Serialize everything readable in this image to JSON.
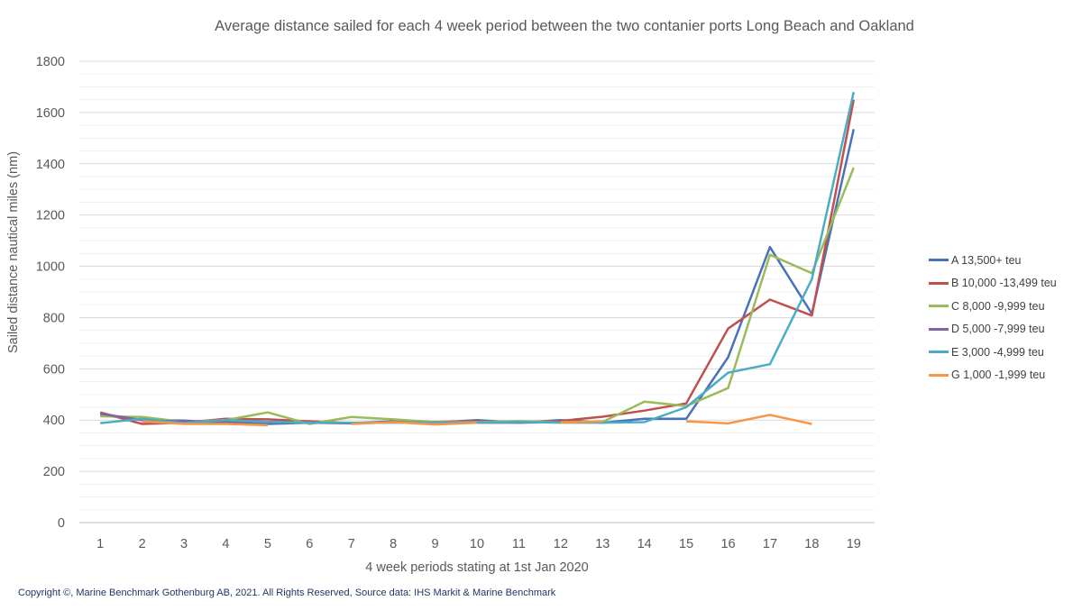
{
  "chart_data": {
    "type": "line",
    "title": "Average distance sailed for each 4 week period between the two contanier ports Long Beach and Oakland",
    "xlabel": "4 week periods stating at 1st Jan 2020",
    "ylabel": "Sailed distance nautical miles (nm)",
    "x": [
      1,
      2,
      3,
      4,
      5,
      6,
      7,
      8,
      9,
      10,
      11,
      12,
      13,
      14,
      15,
      16,
      17,
      18,
      19
    ],
    "ylim": [
      0,
      1800
    ],
    "yticks": [
      0,
      200,
      400,
      600,
      800,
      1000,
      1200,
      1400,
      1600,
      1800
    ],
    "grid": true,
    "legend_position": "right",
    "series": [
      {
        "name": "A 13,500+ teu",
        "color": "#4a72b8",
        "values": [
          420,
          400,
          398,
          388,
          385,
          390,
          388,
          395,
          390,
          400,
          390,
          400,
          390,
          405,
          405,
          645,
          1075,
          815,
          1535
        ]
      },
      {
        "name": "B 10,000 -13,499 teu",
        "color": "#c0504d",
        "values": [
          430,
          385,
          390,
          405,
          403,
          395,
          388,
          392,
          393,
          395,
          392,
          397,
          413,
          437,
          465,
          757,
          870,
          808,
          1650
        ]
      },
      {
        "name": "C 8,000 -9,999 teu",
        "color": "#9bbb59",
        "values": [
          415,
          412,
          393,
          400,
          430,
          385,
          412,
          403,
          392,
          392,
          396,
          392,
          393,
          472,
          455,
          525,
          1045,
          973,
          1385
        ]
      },
      {
        "name": "D 5,000 -7,999 teu",
        "color": "#8064a2",
        "values": [
          425,
          400,
          395,
          395,
          393,
          390,
          387,
          392,
          390,
          390,
          390,
          392,
          null,
          null,
          null,
          null,
          null,
          null,
          null
        ]
      },
      {
        "name": "E 3,000 -4,999 teu",
        "color": "#4bacc6",
        "values": [
          388,
          405,
          388,
          400,
          393,
          390,
          390,
          390,
          390,
          390,
          393,
          390,
          390,
          392,
          450,
          585,
          618,
          950,
          1680
        ]
      },
      {
        "name": "G 1,000 -1,999 teu",
        "color": "#f79646",
        "values": [
          null,
          395,
          385,
          385,
          380,
          null,
          385,
          392,
          383,
          390,
          null,
          390,
          395,
          null,
          395,
          387,
          420,
          385,
          null
        ]
      }
    ]
  },
  "footer": {
    "copyright": "Copyright ©, Marine Benchmark Gothenburg AB, 2021. All Rights Reserved, Source data: IHS Markit & Marine Benchmark"
  }
}
